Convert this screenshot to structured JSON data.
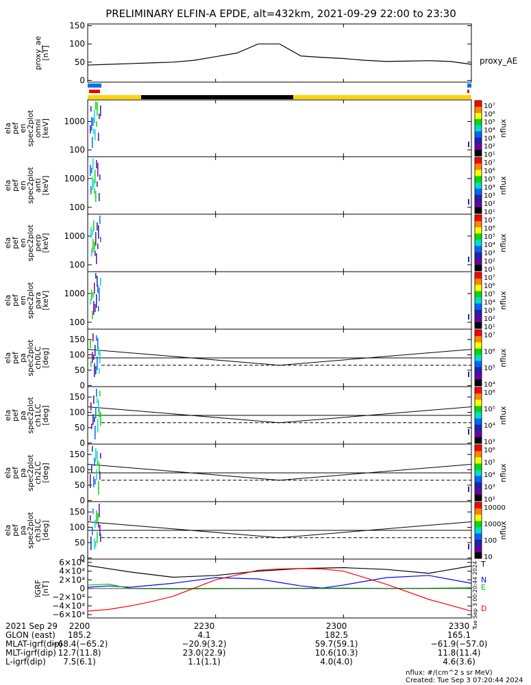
{
  "chart_data": {
    "type": "line",
    "title": "PRELIMINARY ELFIN-A EPDE, alt=432km, 2021-09-29 22:00 to 23:30",
    "x_range_minutes": [
      0,
      90
    ],
    "x_tick_minutes": [
      0,
      30,
      60,
      90
    ],
    "x_tick_labels": [
      "2200",
      "2230",
      "2300",
      "2330"
    ],
    "panels": [
      {
        "id": "proxy-ae",
        "ylabel_lines": [
          "proxy_ae",
          "[nT]"
        ],
        "ylim": [
          0,
          150
        ],
        "yticks": [
          "150",
          "100",
          "50",
          "0"
        ],
        "ytick_values": [
          150,
          100,
          50,
          0
        ],
        "series": [
          {
            "name": "proxy_AE",
            "color": "#000000",
            "x": [
              0,
              5,
              10,
              15,
              20,
              25,
              30,
              35,
              40,
              45,
              50,
              55,
              60,
              65,
              70,
              75,
              80,
              85,
              90
            ],
            "y": [
              42,
              44,
              46,
              48,
              50,
              55,
              65,
              75,
              100,
              100,
              67,
              63,
              60,
              55,
              52,
              53,
              54,
              52,
              44
            ]
          }
        ],
        "legend": "proxy_AE"
      },
      {
        "id": "en-omni",
        "ylabel_lines": [
          "ela",
          "pef",
          "en",
          "spec2plot",
          "omni",
          "[keV]"
        ],
        "yticks": [
          "1000",
          "100"
        ],
        "ytick_values": [
          1000,
          100
        ],
        "colorbar": {
          "label": "nflux",
          "ticks": [
            "10⁷",
            "10⁶",
            "10⁵",
            "10⁴",
            "10³",
            "10²",
            "10¹"
          ]
        }
      },
      {
        "id": "en-anti",
        "ylabel_lines": [
          "ela",
          "pef",
          "en",
          "spec2plot",
          "anti",
          "[keV]"
        ],
        "yticks": [
          "1000",
          "100"
        ],
        "ytick_values": [
          1000,
          100
        ],
        "colorbar": {
          "label": "nflux",
          "ticks": [
            "10⁷",
            "10⁶",
            "10⁵",
            "10⁴",
            "10³",
            "10²",
            "10¹"
          ]
        }
      },
      {
        "id": "en-perp",
        "ylabel_lines": [
          "ela",
          "pef",
          "en",
          "spec2plot",
          "perp",
          "[keV]"
        ],
        "yticks": [
          "1000",
          "100"
        ],
        "ytick_values": [
          1000,
          100
        ],
        "colorbar": {
          "label": "nflux",
          "ticks": [
            "10⁷",
            "10⁶",
            "10⁵",
            "10⁴",
            "10³",
            "10²",
            "10¹"
          ]
        }
      },
      {
        "id": "en-para",
        "ylabel_lines": [
          "ela",
          "pef",
          "en",
          "spec2plot",
          "para",
          "[keV]"
        ],
        "yticks": [
          "1000",
          "100"
        ],
        "ytick_values": [
          1000,
          100
        ],
        "colorbar": {
          "label": "nflux",
          "ticks": [
            "10⁷",
            "10⁶",
            "10⁵",
            "10⁴",
            "10³",
            "10²",
            "10¹"
          ]
        }
      },
      {
        "id": "pa-ch0",
        "ylabel_lines": [
          "ela",
          "pef",
          "pa",
          "spec2plot",
          "ch0LC",
          "[deg]"
        ],
        "ylim": [
          0,
          180
        ],
        "yticks": [
          "150",
          "100",
          "50",
          "0"
        ],
        "ytick_values": [
          150,
          100,
          50,
          0
        ],
        "colorbar": {
          "label": "nflux",
          "ticks": [
            "10⁷",
            "10⁶",
            "10⁵",
            "10⁴"
          ]
        }
      },
      {
        "id": "pa-ch1",
        "ylabel_lines": [
          "ela",
          "pef",
          "pa",
          "spec2plot",
          "ch1LC",
          "[deg]"
        ],
        "ylim": [
          0,
          180
        ],
        "yticks": [
          "150",
          "100",
          "50",
          "0"
        ],
        "ytick_values": [
          150,
          100,
          50,
          0
        ],
        "colorbar": {
          "label": "nflux",
          "ticks": [
            "10⁶",
            "10⁵",
            "10⁴",
            "10³"
          ]
        }
      },
      {
        "id": "pa-ch2",
        "ylabel_lines": [
          "ela",
          "pef",
          "pa",
          "spec2plot",
          "ch2LC",
          "[deg]"
        ],
        "ylim": [
          0,
          180
        ],
        "yticks": [
          "150",
          "100",
          "50",
          "0"
        ],
        "ytick_values": [
          150,
          100,
          50,
          0
        ],
        "colorbar": {
          "label": "nflux",
          "ticks": [
            "10⁶",
            "10⁵",
            "10⁴",
            "10³",
            "10²"
          ]
        }
      },
      {
        "id": "pa-ch3",
        "ylabel_lines": [
          "ela",
          "pef",
          "pa",
          "spec2plot",
          "ch3LC",
          "[deg]"
        ],
        "ylim": [
          0,
          180
        ],
        "yticks": [
          "150",
          "100",
          "50",
          "0"
        ],
        "ytick_values": [
          150,
          100,
          50,
          0
        ],
        "colorbar": {
          "label": "nflux",
          "ticks": [
            "10000",
            "1000",
            "100",
            "10"
          ]
        }
      },
      {
        "id": "igrf",
        "ylabel_lines": [
          "IGRF",
          "[nT]"
        ],
        "ylim": [
          -65000,
          65000
        ],
        "yticks": [
          "6×10⁴",
          "4×10⁴",
          "2×10⁴",
          "0",
          "−2×10⁴",
          "−4×10⁴",
          "−6×10⁴"
        ],
        "ytick_values": [
          60000,
          40000,
          20000,
          0,
          -20000,
          -40000,
          -60000
        ],
        "series": [
          {
            "name": "T",
            "color": "#000000",
            "x": [
              0,
              10,
              20,
              30,
              40,
              50,
              60,
              70,
              80,
              90
            ],
            "y": [
              53000,
              38000,
              26000,
              30000,
              40000,
              46000,
              48000,
              44000,
              35000,
              52000
            ]
          },
          {
            "name": "N",
            "color": "#0000ff",
            "x": [
              0,
              5,
              10,
              20,
              30,
              40,
              45,
              50,
              55,
              60,
              70,
              80,
              90
            ],
            "y": [
              3000,
              6000,
              3000,
              12000,
              25000,
              22000,
              14000,
              6000,
              1000,
              8000,
              25000,
              30000,
              12000
            ]
          },
          {
            "name": "E",
            "color": "#00cc00",
            "x": [
              0,
              5,
              10,
              20,
              30,
              40,
              50,
              60,
              70,
              80,
              90
            ],
            "y": [
              8000,
              10000,
              0,
              -1000,
              -500,
              0,
              500,
              1000,
              0,
              500,
              2000
            ]
          },
          {
            "name": "D",
            "color": "#ff0000",
            "x": [
              0,
              5,
              10,
              15,
              20,
              30,
              40,
              45,
              50,
              55,
              60,
              70,
              80,
              90
            ],
            "y": [
              -52000,
              -48000,
              -40000,
              -30000,
              -18000,
              20000,
              42000,
              45000,
              46000,
              45000,
              40000,
              10000,
              -25000,
              -52000
            ]
          }
        ],
        "legend_entries": [
          "T",
          "N",
          "E",
          "D"
        ]
      }
    ]
  },
  "side_label": "Tue Sep  3 00:20:44 2024",
  "footer": {
    "rows": [
      {
        "label": "2021 Sep 29",
        "values": [
          "2200",
          "2230",
          "2300",
          "2330"
        ]
      },
      {
        "label": "GLON (east)",
        "values": [
          "185.2",
          "4.1",
          "182.5",
          "165.1"
        ]
      },
      {
        "label": "MLAT-igrf(dip)",
        "values": [
          "−68.4(−65.2)",
          "−20.9(3.2)",
          "59.7(59.1)",
          "−61.9(−57.0)"
        ]
      },
      {
        "label": "MLT-igrf(dip)",
        "values": [
          "12.7(11.8)",
          "23.0(22.9)",
          "10.6(10.3)",
          "11.8(11.4)"
        ]
      },
      {
        "label": "L-igrf(dip)",
        "values": [
          "7.5(6.1)",
          "1.1(1.1)",
          "4.0(4.0)",
          "4.6(3.6)"
        ]
      }
    ],
    "units_note": "nflux: #/(cm^2 s sr MeV)",
    "created": "Created: Tue Sep  3 07:20:44 2024"
  },
  "colors": {
    "state_bar_yellow": "#ffd500",
    "state_bar_black": "#000000",
    "marker_blue": "#0073e6",
    "marker_red": "#ee0000"
  }
}
